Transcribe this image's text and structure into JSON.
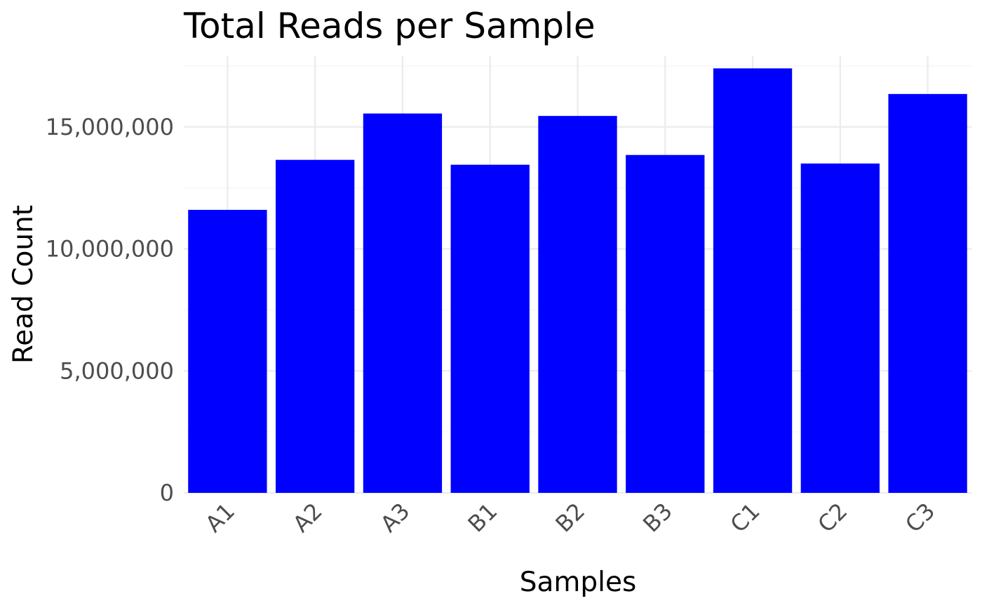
{
  "chart_data": {
    "type": "bar",
    "title": "Total Reads per Sample",
    "xlabel": "Samples",
    "ylabel": "Read Count",
    "categories": [
      "A1",
      "A2",
      "A3",
      "B1",
      "B2",
      "B3",
      "C1",
      "C2",
      "C3"
    ],
    "values": [
      11600000,
      13650000,
      15550000,
      13450000,
      15450000,
      13850000,
      17400000,
      13500000,
      16350000
    ],
    "ylim": [
      0,
      17900000
    ],
    "yticks": [
      0,
      5000000,
      10000000,
      15000000
    ],
    "ytick_labels": [
      "0",
      "5,000,000",
      "10,000,000",
      "15,000,000"
    ],
    "bar_color": "#0000ff",
    "grid": true,
    "legend": "none"
  }
}
